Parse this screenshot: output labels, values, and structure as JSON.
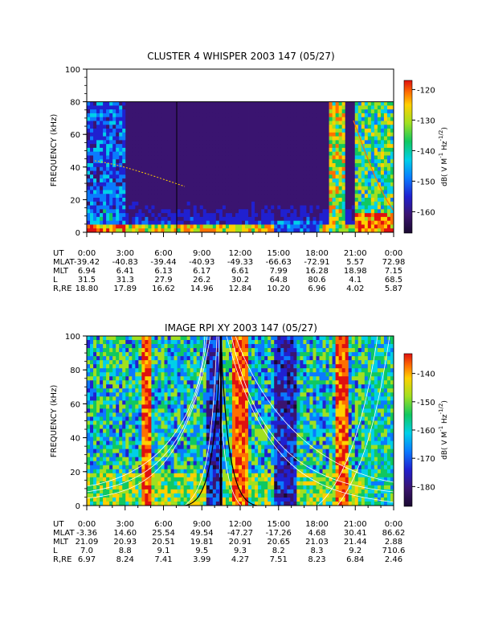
{
  "chart_data": [
    {
      "type": "heatmap",
      "title": "CLUSTER 4 WHISPER 2003 147 (05/27)",
      "ylabel": "FREQUENCY (kHz)",
      "ylim": [
        0,
        100
      ],
      "y_ticks": [
        0,
        20,
        40,
        60,
        80,
        100
      ],
      "data_top_khz": 80,
      "colorbar": {
        "label_html": "dB( V M<tspan dy=\"-5\" font-size=\"7\">-1</tspan><tspan dy=\"5\"> Hz</tspan><tspan dy=\"-5\" font-size=\"7\">-1/2</tspan><tspan dy=\"5\">)</tspan>",
        "label_text": "dB( V M-1 Hz-1/2)",
        "range": [
          -167,
          -117
        ],
        "ticks": [
          -120,
          -130,
          -140,
          -150,
          -160
        ]
      },
      "ephemeris": {
        "rows": [
          {
            "label": "UT",
            "values": [
              "0:00",
              "3:00",
              "6:00",
              "9:00",
              "12:00",
              "15:00",
              "18:00",
              "21:00",
              "0:00"
            ]
          },
          {
            "label": "MLAT",
            "values": [
              "-39.42",
              "-40.83",
              "-39.44",
              "-40.93",
              "-49.33",
              "-66.63",
              "-72.91",
              "5.57",
              "72.98"
            ]
          },
          {
            "label": "MLT",
            "values": [
              "6.94",
              "6.41",
              "6.13",
              "6.17",
              "6.61",
              "7.99",
              "16.28",
              "18.98",
              "7.15"
            ]
          },
          {
            "label": "L",
            "values": [
              "31.5",
              "31.3",
              "27.9",
              "26.2",
              "30.2",
              "64.8",
              "80.6",
              "4.1",
              "68.5"
            ]
          },
          {
            "label": "R,RE",
            "values": [
              "18.80",
              "17.89",
              "16.62",
              "14.96",
              "12.84",
              "10.20",
              "6.96",
              "4.02",
              "5.87"
            ]
          }
        ]
      }
    },
    {
      "type": "heatmap",
      "title": "IMAGE RPI XY 2003 147 (05/27)",
      "ylabel": "FREQUENCY (kHz)",
      "ylim": [
        0,
        100
      ],
      "y_ticks": [
        0,
        20,
        40,
        60,
        80,
        100
      ],
      "data_top_khz": 100,
      "colorbar": {
        "label_html": "dB( V M<tspan dy=\"-5\" font-size=\"7\">-1</tspan><tspan dy=\"5\"> Hz</tspan><tspan dy=\"-5\" font-size=\"7\">-1/2</tspan><tspan dy=\"5\">)</tspan>",
        "label_text": "dB( V M-1 Hz-1/2)",
        "range": [
          -187,
          -133
        ],
        "ticks": [
          -140,
          -150,
          -160,
          -170,
          -180
        ]
      },
      "ephemeris": {
        "rows": [
          {
            "label": "UT",
            "values": [
              "0:00",
              "3:00",
              "6:00",
              "9:00",
              "12:00",
              "15:00",
              "18:00",
              "21:00",
              "0:00"
            ]
          },
          {
            "label": "MLAT",
            "values": [
              "-3.36",
              "14.60",
              "25.54",
              "49.54",
              "-47.27",
              "-17.26",
              "4.68",
              "30.41",
              "86.62"
            ]
          },
          {
            "label": "MLT",
            "values": [
              "21.09",
              "20.93",
              "20.51",
              "19.81",
              "20.91",
              "20.65",
              "21.03",
              "21.44",
              "2.88"
            ]
          },
          {
            "label": "L",
            "values": [
              "7.0",
              "8.8",
              "9.1",
              "9.5",
              "9.3",
              "8.2",
              "8.3",
              "9.2",
              "710.6"
            ]
          },
          {
            "label": "R,RE",
            "values": [
              "6.97",
              "8.24",
              "7.41",
              "3.99",
              "4.27",
              "7.51",
              "8.23",
              "6.84",
              "2.46"
            ]
          }
        ]
      }
    }
  ]
}
